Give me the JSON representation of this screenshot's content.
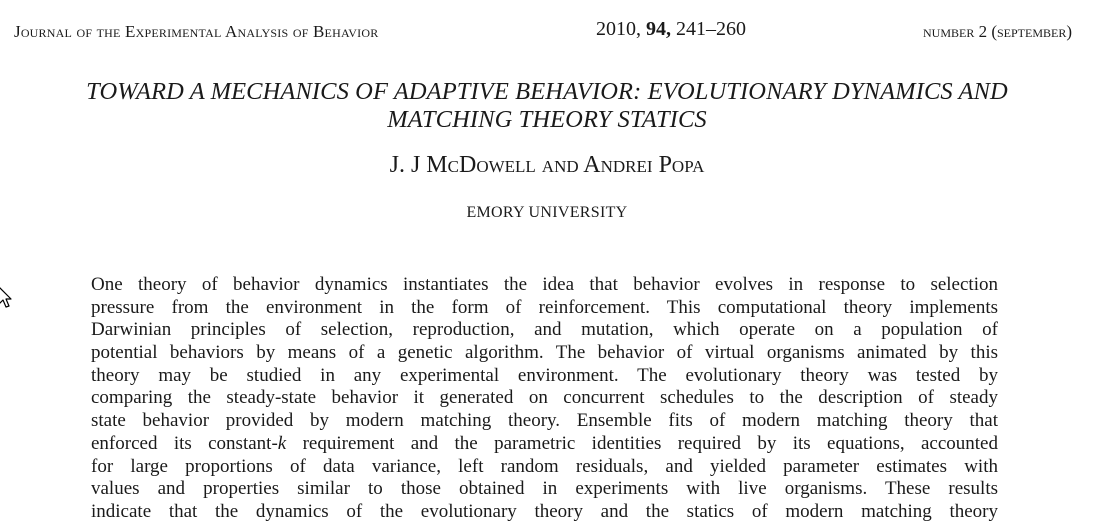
{
  "running_head": {
    "journal": "Journal of the Experimental Analysis of Behavior",
    "year": "2010,",
    "volume": "94,",
    "pages": "241–260",
    "issue": "number 2 (september)"
  },
  "title": "TOWARD A MECHANICS OF ADAPTIVE BEHAVIOR: EVOLUTIONARY DYNAMICS AND MATCHING THEORY STATICS",
  "authors": "J. J McDowell and Andrei Popa",
  "affiliation": "EMORY UNIVERSITY",
  "abstract": {
    "lines": [
      "One theory of behavior dynamics instantiates the idea that behavior evolves in response to selection",
      "pressure from the environment in the form of reinforcement. This computational theory implements",
      "Darwinian principles of selection, reproduction, and mutation, which operate on a population of",
      "potential behaviors by means of a genetic algorithm. The behavior of virtual organisms animated by this",
      "theory may be studied in any experimental environment. The evolutionary theory was tested by",
      "comparing the steady-state behavior it generated on concurrent schedules to the description of steady",
      "state behavior provided by modern matching theory. Ensemble fits of modern matching theory that",
      "enforced its constant-",
      "k",
      " requirement and the parametric identities required by its equations, accounted",
      "for large proportions of data variance, left random residuals, and yielded parameter estimates with",
      "values and properties similar to those obtained in experiments with live organisms. These results",
      "indicate that the dynamics of the evolutionary theory and the statics of modern matching theory"
    ]
  }
}
